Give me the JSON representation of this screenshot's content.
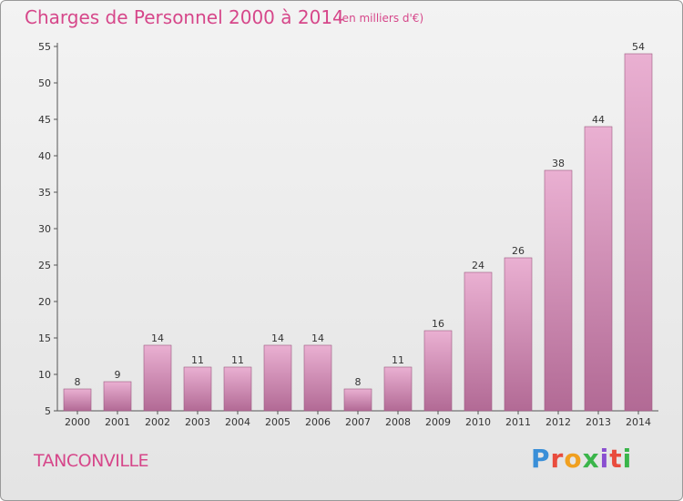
{
  "header": {
    "title": "Charges de Personnel 2000 à 2014",
    "subtitle": "(en milliers d'€)"
  },
  "footer": {
    "city": "TANCONVILLE",
    "logo_text": "Proxiti",
    "logo_colors": [
      "#3a8fd8",
      "#e94c3d",
      "#f0a020",
      "#3ab54a",
      "#8a4fd0",
      "#e94c3d",
      "#3ab54a"
    ]
  },
  "colors": {
    "bar_light": "#eab0d2",
    "bar_dark": "#b26a95",
    "accent": "#d6478a"
  },
  "chart_data": {
    "type": "bar",
    "title": "Charges de Personnel 2000 à 2014",
    "subtitle": "(en milliers d'€)",
    "categories": [
      "2000",
      "2001",
      "2002",
      "2003",
      "2004",
      "2005",
      "2006",
      "2007",
      "2008",
      "2009",
      "2010",
      "2011",
      "2012",
      "2013",
      "2014"
    ],
    "values": [
      8,
      9,
      14,
      11,
      11,
      14,
      14,
      8,
      11,
      16,
      24,
      26,
      38,
      44,
      54
    ],
    "ylim": [
      5,
      55
    ],
    "yticks": [
      5,
      10,
      15,
      20,
      25,
      30,
      35,
      40,
      45,
      50,
      55
    ],
    "grid": false,
    "data_labels": true
  }
}
